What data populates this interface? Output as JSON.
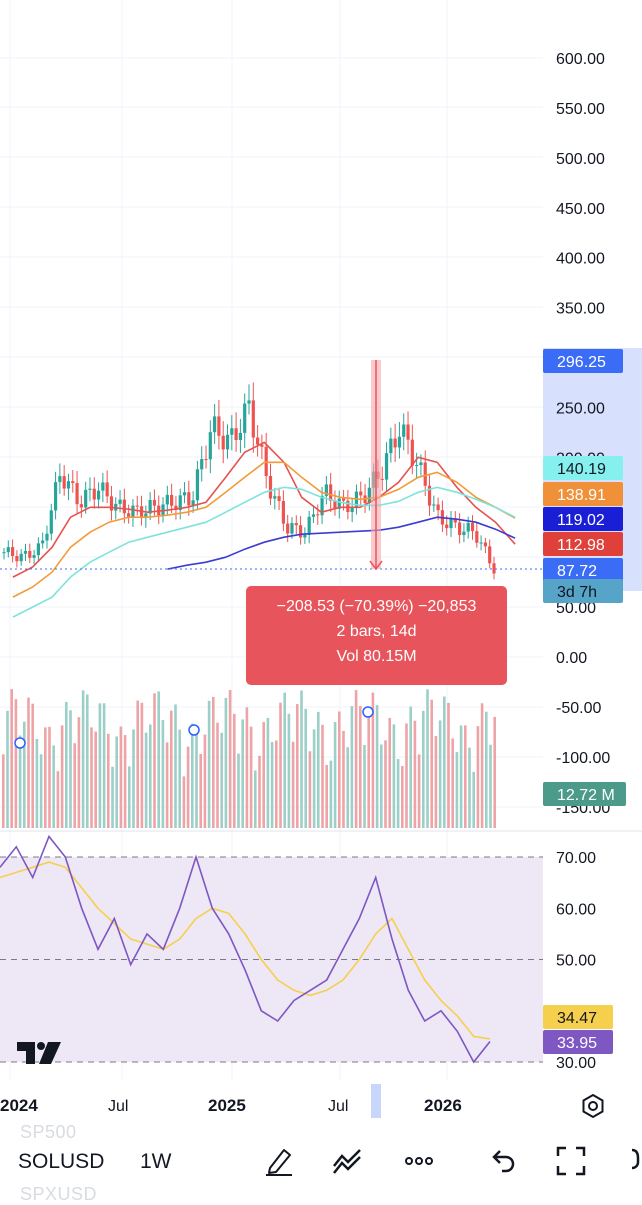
{
  "chart_data": {
    "type": "candlestick",
    "symbol": "SOLUSD",
    "interval": "1W",
    "price_axis": {
      "ticks": [
        "600.00",
        "550.00",
        "500.00",
        "450.00",
        "400.00",
        "350.00",
        "250.00",
        "200.00",
        "50.00",
        "0.00",
        "-50.00",
        "-100.00",
        "-150.00"
      ],
      "range": [
        -150,
        620
      ]
    },
    "x_axis_labels": [
      "2024",
      "Jul",
      "2025",
      "Jul",
      "2026"
    ],
    "price_series": {
      "x": [
        "2023-12",
        "2024-01",
        "2024-02",
        "2024-03",
        "2024-04",
        "2024-05",
        "2024-06",
        "2024-07",
        "2024-08",
        "2024-09",
        "2024-10",
        "2024-11",
        "2024-12",
        "2025-01",
        "2025-02",
        "2025-03",
        "2025-04",
        "2025-05",
        "2025-06",
        "2025-07",
        "2025-08",
        "2025-09",
        "2025-10",
        "2025-11",
        "2025-12",
        "2026-01",
        "2026-02"
      ],
      "close": [
        105,
        100,
        110,
        185,
        155,
        170,
        150,
        145,
        150,
        155,
        160,
        230,
        215,
        250,
        175,
        130,
        125,
        165,
        150,
        160,
        185,
        230,
        190,
        140,
        130,
        125,
        88
      ]
    },
    "moving_averages": [
      {
        "color": "#e6534f",
        "last": 112.98,
        "values": [
          80,
          90,
          110,
          140,
          150,
          150,
          148,
          145,
          147,
          150,
          155,
          180,
          205,
          215,
          195,
          160,
          145,
          150,
          150,
          160,
          175,
          200,
          195,
          170,
          150,
          135,
          113
        ]
      },
      {
        "color": "#f29b38",
        "last": 138.91,
        "values": [
          60,
          70,
          85,
          110,
          125,
          135,
          140,
          140,
          142,
          145,
          150,
          165,
          180,
          195,
          195,
          180,
          165,
          160,
          158,
          160,
          168,
          180,
          185,
          175,
          160,
          150,
          139
        ]
      },
      {
        "color": "#7fe3dc",
        "last": 140.19,
        "values": [
          40,
          50,
          60,
          80,
          95,
          105,
          115,
          120,
          125,
          130,
          135,
          145,
          155,
          165,
          170,
          168,
          160,
          155,
          152,
          152,
          156,
          165,
          170,
          165,
          158,
          150,
          140
        ]
      },
      {
        "color": "#3b3cd1",
        "last": 119.02,
        "values": [
          null,
          null,
          null,
          null,
          null,
          null,
          null,
          null,
          88,
          92,
          95,
          100,
          108,
          115,
          120,
          123,
          124,
          125,
          126,
          127,
          130,
          135,
          140,
          138,
          135,
          128,
          119
        ]
      }
    ],
    "price_badges": [
      {
        "label": "296.25",
        "bg": "#3b6cf6",
        "fg": "#ffffff"
      },
      {
        "label": "140.19",
        "bg": "#86f0ef",
        "fg": "#131722"
      },
      {
        "label": "138.91",
        "bg": "#f0913a",
        "fg": "#ffffff"
      },
      {
        "label": "119.02",
        "bg": "#1a1fd6",
        "fg": "#ffffff"
      },
      {
        "label": "112.98",
        "bg": "#e0403a",
        "fg": "#ffffff"
      },
      {
        "label": "87.72",
        "bg": "#3b6cf6",
        "fg": "#ffffff"
      },
      {
        "label": "3d 7h",
        "bg": "#56a5c8",
        "fg": "#131722"
      }
    ],
    "current_price": 87.72,
    "measurement": {
      "from": 296.25,
      "to": 87.72,
      "line1": "−208.53 (−70.39%) −20,853",
      "line2": "2 bars, 14d",
      "line3": "Vol 80.15M"
    },
    "volume": {
      "badge": "12.72 M",
      "badge_color": "#4c9a8a",
      "up_color": "#9ccfc7",
      "down_color": "#eea3a6"
    },
    "rsi": {
      "ticks": [
        "70.00",
        "60.00",
        "50.00",
        "30.00"
      ],
      "levels": [
        70,
        50,
        30
      ],
      "range": [
        28,
        76
      ],
      "rsi_color": "#7e57c2",
      "ma_color": "#f6d04d",
      "rsi_value": "33.95",
      "ma_value": "34.47",
      "rsi": [
        68,
        72,
        66,
        74,
        70,
        60,
        52,
        58,
        49,
        55,
        52,
        60,
        70,
        60,
        55,
        48,
        40,
        38,
        42,
        44,
        46,
        52,
        58,
        66,
        54,
        44,
        38,
        40,
        36,
        30,
        34
      ],
      "rsi_ma": [
        66,
        67,
        68,
        69,
        68,
        64,
        60,
        57,
        54,
        53,
        52,
        54,
        58,
        60,
        59,
        55,
        50,
        46,
        44,
        43,
        44,
        46,
        50,
        55,
        58,
        52,
        46,
        42,
        39,
        35,
        34.5
      ]
    }
  },
  "toolbar": {
    "symbol": "SOLUSD",
    "interval": "1W",
    "ghost_above": "SP500",
    "ghost_below": "SPXUSD",
    "icons": [
      "pencil-icon",
      "drawing-tools-icon",
      "more-icon",
      "undo-icon",
      "fullscreen-icon"
    ]
  },
  "colors": {
    "up": "#26a69a",
    "down": "#ef5350",
    "grid": "#f0f3fa",
    "rsi_band": "#ede7f6"
  }
}
